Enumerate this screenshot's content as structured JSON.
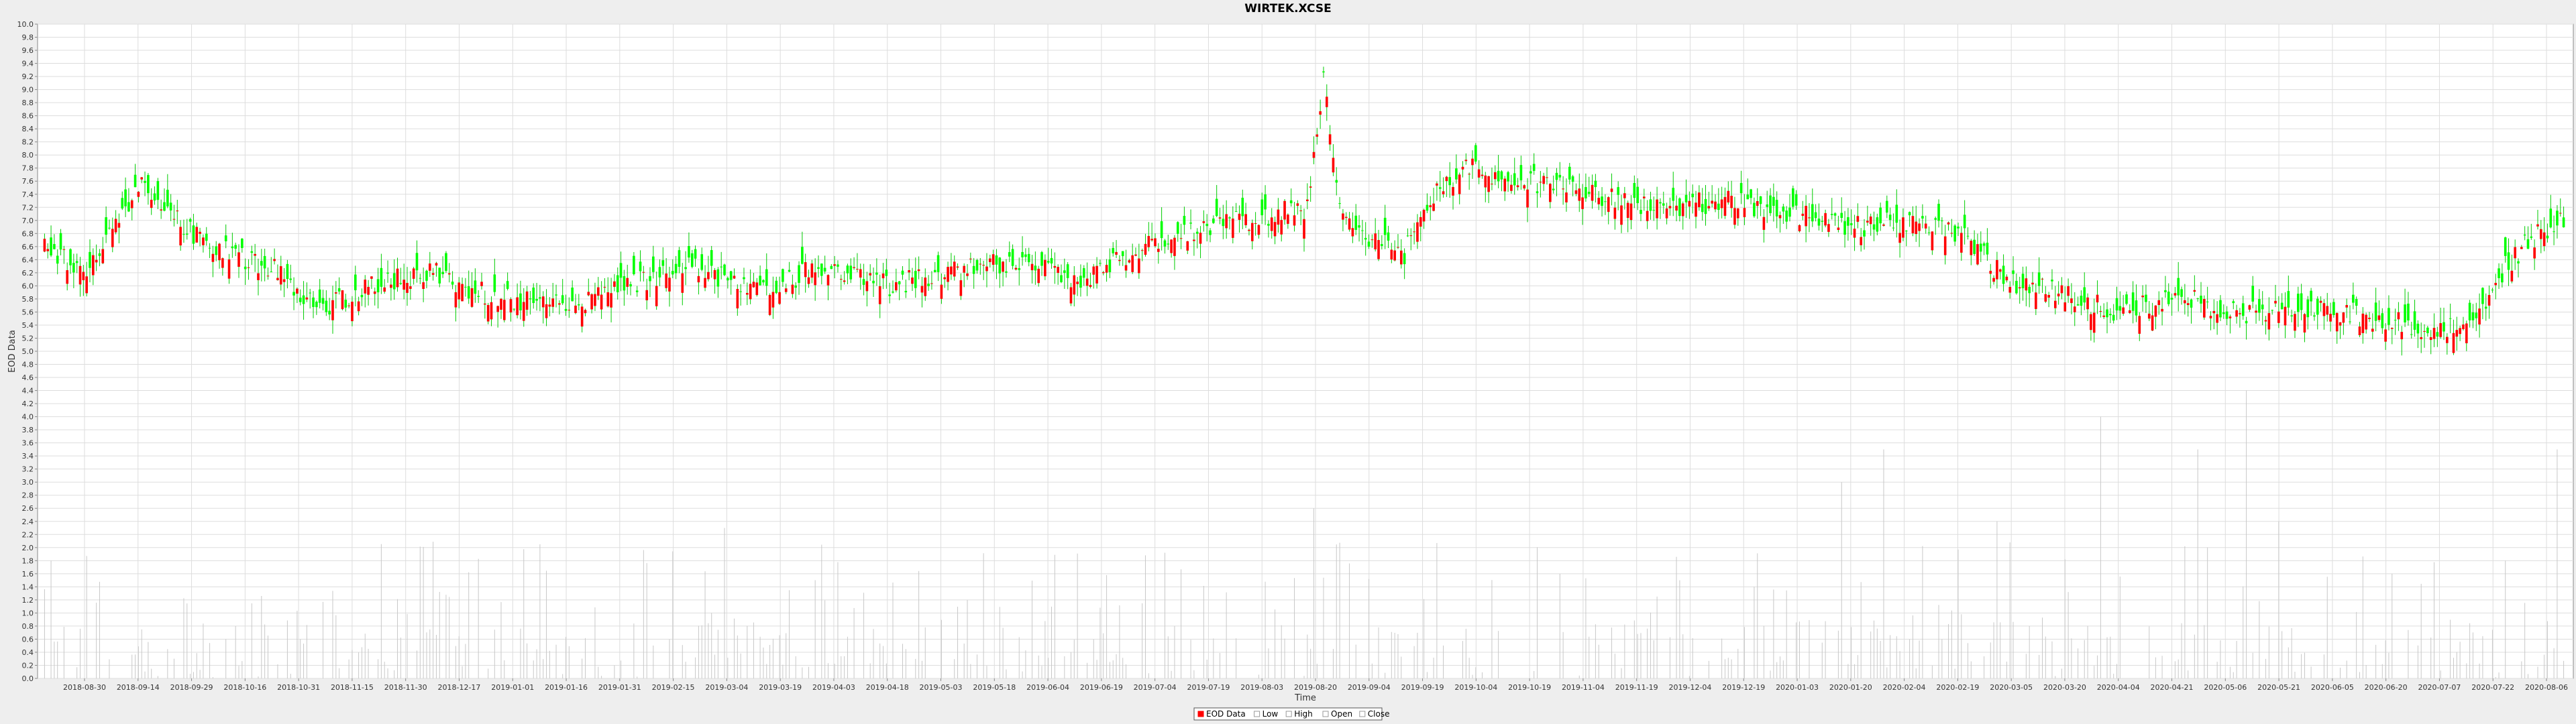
{
  "chart_data": {
    "type": "candlestick",
    "title": "WIRTEK.XCSE",
    "xlabel": "Time",
    "ylabel": "EOD Data",
    "ylim": [
      0,
      10
    ],
    "grid": true,
    "y_ticks": [
      "0.0",
      "0.2",
      "0.4",
      "0.6",
      "0.8",
      "1.0",
      "1.2",
      "1.4",
      "1.6",
      "1.8",
      "2.0",
      "2.2",
      "2.4",
      "2.6",
      "2.8",
      "3.0",
      "3.2",
      "3.4",
      "3.6",
      "3.8",
      "4.0",
      "4.2",
      "4.4",
      "4.6",
      "4.8",
      "5.0",
      "5.2",
      "5.4",
      "5.6",
      "5.8",
      "6.0",
      "6.2",
      "6.4",
      "6.6",
      "6.8",
      "7.0",
      "7.2",
      "7.4",
      "7.6",
      "7.8",
      "8.0",
      "8.2",
      "8.4",
      "8.6",
      "8.8",
      "9.0",
      "9.2",
      "9.4",
      "9.6",
      "9.8",
      "10.0"
    ],
    "x_ticks": [
      "2018-08-30",
      "2018-09-14",
      "2018-09-29",
      "2018-10-16",
      "2018-10-31",
      "2018-11-15",
      "2018-11-30",
      "2018-12-17",
      "2019-01-01",
      "2019-01-16",
      "2019-01-31",
      "2019-02-15",
      "2019-03-04",
      "2019-03-19",
      "2019-04-03",
      "2019-04-18",
      "2019-05-03",
      "2019-05-18",
      "2019-06-04",
      "2019-06-19",
      "2019-07-04",
      "2019-07-19",
      "2019-08-03",
      "2019-08-20",
      "2019-09-04",
      "2019-09-19",
      "2019-10-04",
      "2019-10-19",
      "2019-11-04",
      "2019-11-19",
      "2019-12-04",
      "2019-12-19",
      "2020-01-03",
      "2020-01-20",
      "2020-02-04",
      "2020-02-19",
      "2020-03-05",
      "2020-03-20",
      "2020-04-04",
      "2020-04-21",
      "2020-05-06",
      "2020-05-21",
      "2020-06-05",
      "2020-06-20",
      "2020-07-07",
      "2020-07-22",
      "2020-08-06"
    ],
    "price_keys": [
      [
        0,
        6.7
      ],
      [
        12,
        6.1
      ],
      [
        30,
        7.6
      ],
      [
        50,
        6.6
      ],
      [
        70,
        6.3
      ],
      [
        85,
        5.6
      ],
      [
        100,
        6.0
      ],
      [
        120,
        6.2
      ],
      [
        140,
        5.8
      ],
      [
        160,
        5.7
      ],
      [
        180,
        6.0
      ],
      [
        200,
        6.3
      ],
      [
        220,
        5.9
      ],
      [
        240,
        6.3
      ],
      [
        260,
        6.0
      ],
      [
        280,
        6.2
      ],
      [
        300,
        6.4
      ],
      [
        320,
        6.1
      ],
      [
        340,
        6.6
      ],
      [
        360,
        6.9
      ],
      [
        380,
        7.1
      ],
      [
        390,
        7.2
      ],
      [
        395,
        9.2
      ],
      [
        400,
        7.3
      ],
      [
        405,
        6.8
      ],
      [
        420,
        6.5
      ],
      [
        430,
        7.4
      ],
      [
        440,
        7.8
      ],
      [
        460,
        7.6
      ],
      [
        480,
        7.4
      ],
      [
        500,
        7.2
      ],
      [
        520,
        7.3
      ],
      [
        540,
        7.1
      ],
      [
        560,
        6.9
      ],
      [
        580,
        7.0
      ],
      [
        595,
        6.7
      ],
      [
        605,
        6.1
      ],
      [
        620,
        5.9
      ],
      [
        640,
        5.6
      ],
      [
        660,
        5.8
      ],
      [
        680,
        5.6
      ],
      [
        700,
        5.7
      ],
      [
        720,
        5.5
      ],
      [
        740,
        5.3
      ],
      [
        750,
        5.5
      ],
      [
        760,
        6.3
      ],
      [
        770,
        6.8
      ],
      [
        778,
        7.0
      ]
    ],
    "volume_spikes": [
      [
        2,
        1.8
      ],
      [
        210,
        2.3
      ],
      [
        285,
        1.2
      ],
      [
        392,
        2.6
      ],
      [
        468,
        1.6
      ],
      [
        505,
        1.5
      ],
      [
        555,
        3.0
      ],
      [
        568,
        3.5
      ],
      [
        603,
        2.4
      ],
      [
        635,
        4.0
      ],
      [
        665,
        3.5
      ],
      [
        680,
        4.4
      ],
      [
        690,
        2.4
      ],
      [
        725,
        1.6
      ],
      [
        760,
        1.8
      ],
      [
        776,
        3.5
      ]
    ],
    "legend": [
      "EOD Data",
      "Low",
      "High",
      "Open",
      "Close"
    ],
    "colors": {
      "up": "#00ff00",
      "down": "#ff0000",
      "wick": "#00cc00",
      "volume": "#c8c8c8",
      "grid": "#dddddd",
      "plot_bg": "#ffffff",
      "page_bg": "#eeeeee",
      "axis": "#888888"
    }
  }
}
